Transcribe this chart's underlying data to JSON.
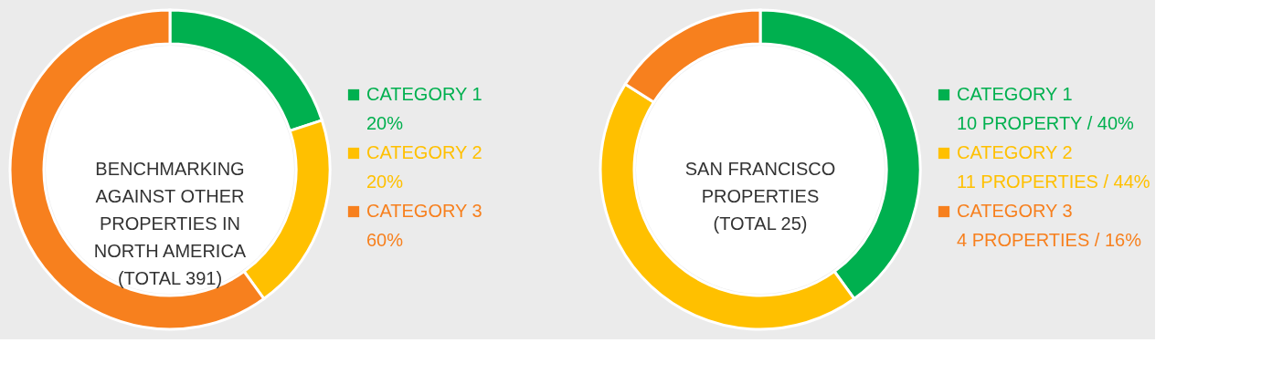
{
  "chart_data": [
    {
      "type": "donut",
      "title": "BENCHMARKING\nAGAINST OTHER\nPROPERTIES IN\nNORTH AMERICA\n(TOTAL 391)",
      "categories": [
        "CATEGORY 1",
        "CATEGORY 2",
        "CATEGORY 3"
      ],
      "values": [
        20,
        20,
        60
      ],
      "colors": [
        "#00b04f",
        "#ffc000",
        "#f7801e"
      ],
      "value_labels": [
        "20%",
        "20%",
        "60%"
      ],
      "legend": "right"
    },
    {
      "type": "donut",
      "title": "SAN FRANCISCO\nPROPERTIES\n(TOTAL 25)",
      "categories": [
        "CATEGORY 1",
        "CATEGORY 2",
        "CATEGORY 3"
      ],
      "values": [
        40,
        44,
        16
      ],
      "colors": [
        "#00b04f",
        "#ffc000",
        "#f7801e"
      ],
      "value_labels": [
        "10 PROPERTY / 40%",
        "11 PROPERTIES / 44%",
        "4 PROPERTIES / 16%"
      ],
      "legend": "right"
    }
  ]
}
